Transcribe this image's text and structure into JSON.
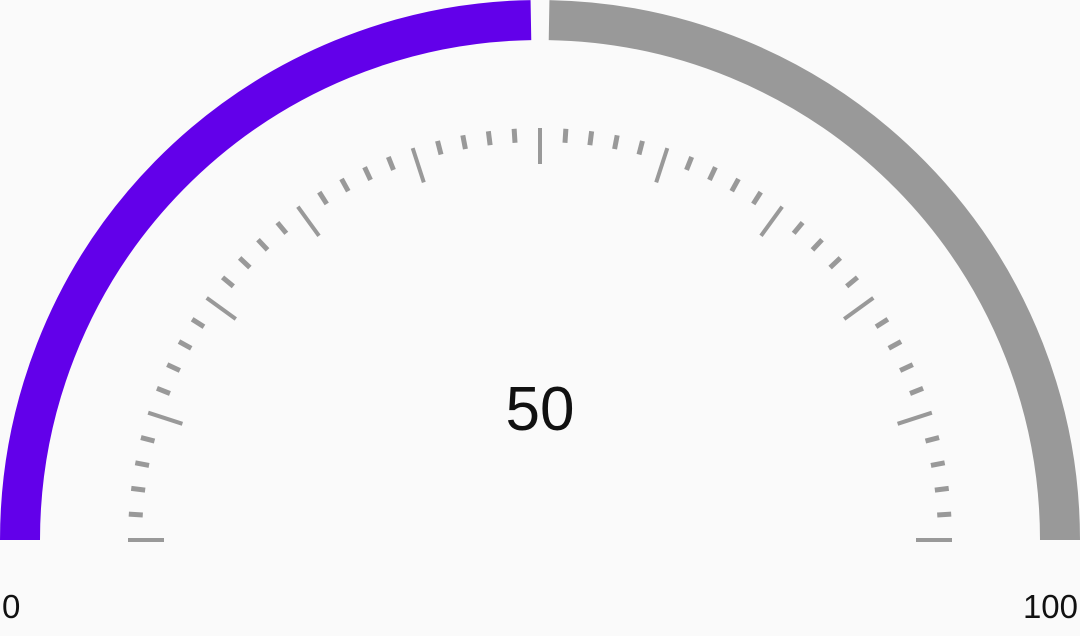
{
  "gauge": {
    "value": 50,
    "value_text": "50",
    "min": 0,
    "max": 100,
    "min_label": "0",
    "max_label": "100",
    "major_tick_step": 10,
    "minor_ticks_per_major": 4,
    "colors": {
      "progress": "#6200ea",
      "track": "#999999",
      "ticks": "#999999",
      "text": "#111111"
    }
  }
}
